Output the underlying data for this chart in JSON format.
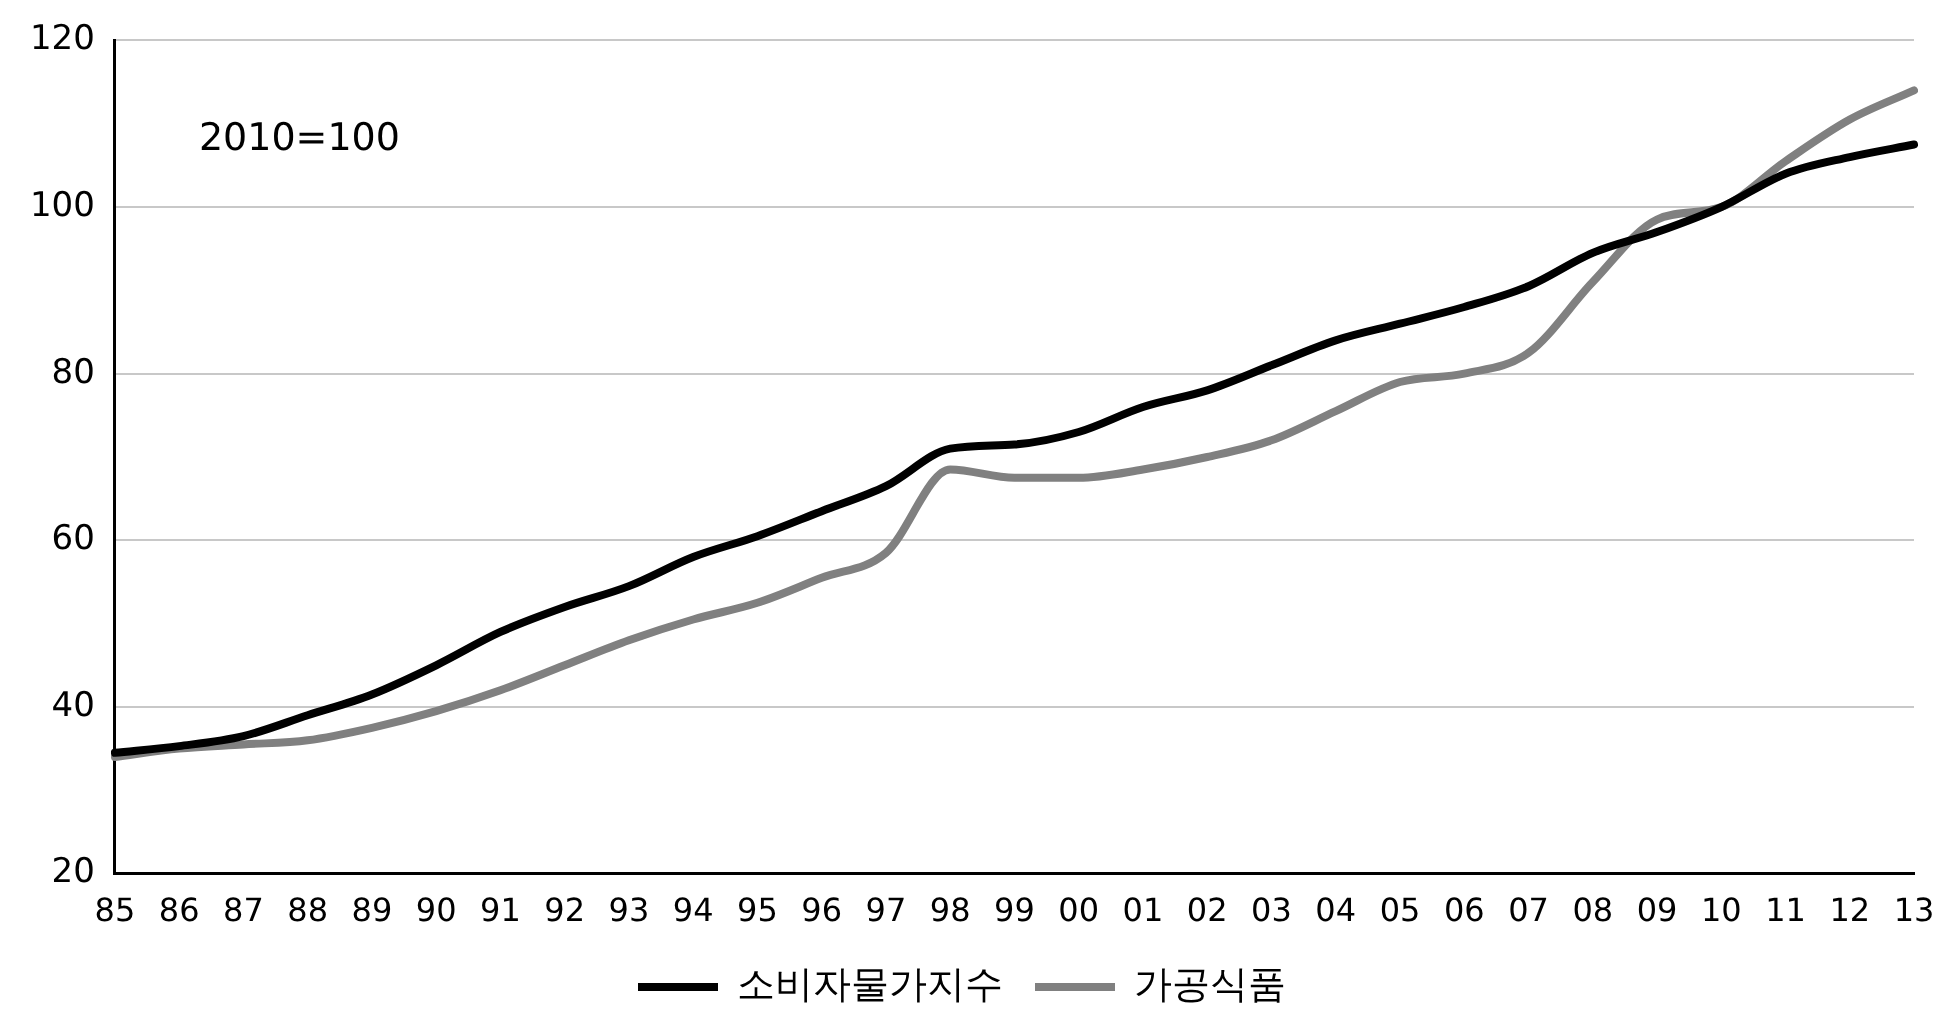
{
  "chart_data": {
    "type": "line",
    "categories": [
      "85",
      "86",
      "87",
      "88",
      "89",
      "90",
      "91",
      "92",
      "93",
      "94",
      "95",
      "96",
      "97",
      "98",
      "99",
      "00",
      "01",
      "02",
      "03",
      "04",
      "05",
      "06",
      "07",
      "08",
      "09",
      "10",
      "11",
      "12",
      "13"
    ],
    "series": [
      {
        "name": "소비자물가지수",
        "color": "#000000",
        "values": [
          34.5,
          35.3,
          36.5,
          39,
          41.5,
          45,
          49,
          52,
          54.5,
          58,
          60.5,
          63.5,
          66.5,
          71,
          71.5,
          73,
          76,
          78,
          81,
          84,
          86,
          88,
          90.5,
          94.5,
          97,
          100,
          104,
          106,
          107.5
        ]
      },
      {
        "name": "가공식품",
        "color": "#808080",
        "values": [
          34,
          35,
          35.5,
          36,
          37.5,
          39.5,
          42,
          45,
          48,
          50.5,
          52.5,
          55.5,
          58.5,
          68.5,
          67.5,
          67.5,
          68.5,
          70,
          72,
          75.5,
          79,
          80,
          82.5,
          91,
          98.5,
          100,
          105.5,
          110.5,
          114
        ]
      }
    ],
    "ylim": [
      20,
      120
    ],
    "yticks": [
      20,
      40,
      60,
      80,
      100,
      120
    ],
    "grid": "y",
    "legend": "bottom",
    "marker": "none",
    "line_style": "solid",
    "annotations": [
      "2010=100"
    ]
  }
}
